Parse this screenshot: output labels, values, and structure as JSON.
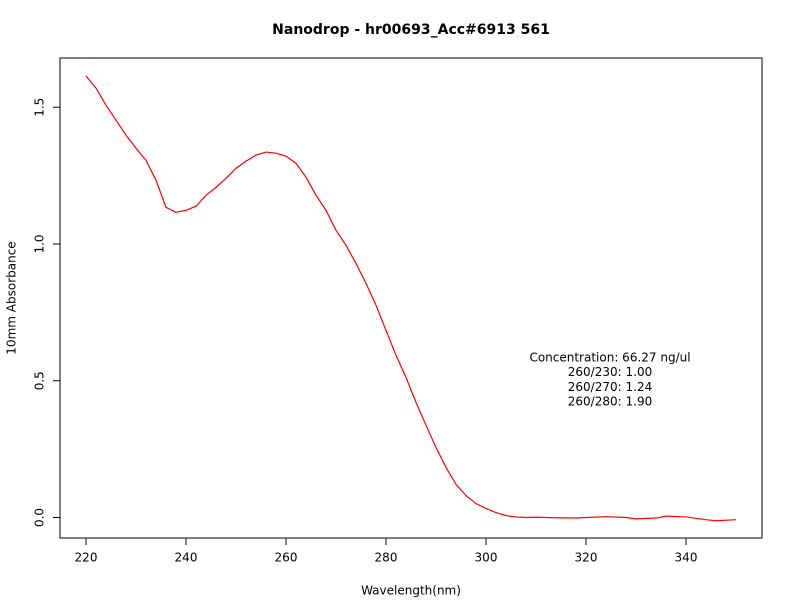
{
  "chart_data": {
    "type": "line",
    "title": "Nanodrop - hr00693_Acc#6913 561",
    "x_label": "Wavelength(nm)",
    "y_label": "10mm Absorbance",
    "annotations": [
      "Concentration: 66.27 ng/ul",
      "260/230: 1.00",
      "260/270: 1.24",
      "260/280: 1.90"
    ],
    "xlim": [
      214.8,
      355.2
    ],
    "ylim": [
      -0.075,
      1.68
    ],
    "xticks": [
      220,
      240,
      260,
      280,
      300,
      320,
      340
    ],
    "yticks": [
      {
        "value": 0,
        "label": "0.0"
      },
      0.5,
      {
        "value": 1,
        "label": "1.0"
      },
      1.5
    ],
    "grid": false,
    "x": [
      220,
      222,
      224,
      226,
      228,
      230,
      232,
      234,
      236,
      238,
      240,
      242,
      244,
      246,
      248,
      250,
      252,
      254,
      256,
      258,
      260,
      262,
      264,
      266,
      268,
      270,
      272,
      274,
      276,
      278,
      280,
      282,
      284,
      286,
      288,
      290,
      292,
      294,
      296,
      298,
      300,
      302,
      304,
      306,
      308,
      310,
      314,
      318,
      320,
      324,
      328,
      330,
      334,
      336,
      340,
      344,
      346,
      350
    ],
    "series": [
      {
        "name": "Absorbance",
        "color": "#ff0000",
        "values": [
          1.614,
          1.57,
          1.507,
          1.453,
          1.398,
          1.35,
          1.306,
          1.233,
          1.134,
          1.116,
          1.123,
          1.138,
          1.178,
          1.207,
          1.24,
          1.277,
          1.303,
          1.325,
          1.336,
          1.332,
          1.321,
          1.295,
          1.244,
          1.178,
          1.123,
          1.05,
          0.995,
          0.929,
          0.856,
          0.776,
          0.684,
          0.593,
          0.512,
          0.421,
          0.337,
          0.256,
          0.183,
          0.121,
          0.08,
          0.051,
          0.033,
          0.018,
          0.007,
          0.002,
          0.0,
          0.001,
          -0.001,
          -0.002,
          0.0,
          0.003,
          0.0,
          -0.005,
          -0.002,
          0.005,
          0.002,
          -0.008,
          -0.012,
          -0.008
        ]
      }
    ]
  }
}
